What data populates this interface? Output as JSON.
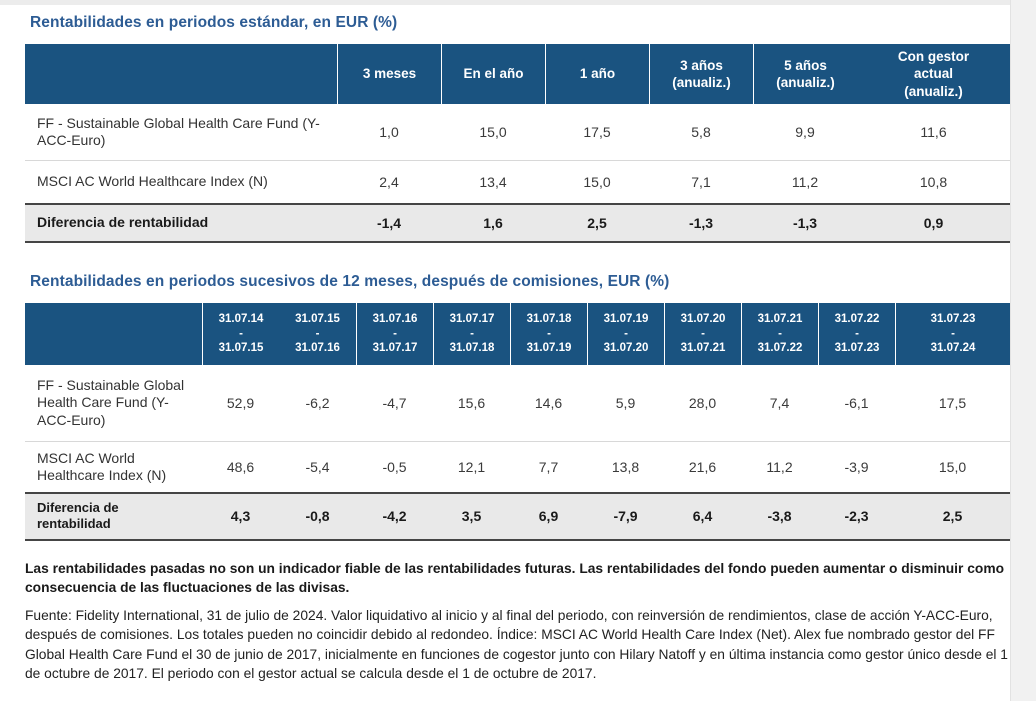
{
  "colors": {
    "header_bg": "#1a5380",
    "title_blue": "#2d5c94",
    "diff_row_bg": "#e9e9e9",
    "dark_border": "#454545",
    "row_divider": "#d8d8d8"
  },
  "table1": {
    "title": "Rentabilidades en periodos estándar, en EUR (%)",
    "columns": [
      "3 meses",
      "En el año",
      "1 año",
      "3 años\n(anualiz.)",
      "5 años\n(anualiz.)",
      "Con gestor\nactual\n(anualiz.)"
    ],
    "rows": [
      {
        "label": "FF - Sustainable Global Health Care Fund (Y-ACC-Euro)",
        "values": [
          "1,0",
          "15,0",
          "17,5",
          "5,8",
          "9,9",
          "11,6"
        ]
      },
      {
        "label": "MSCI AC World Healthcare Index (N)",
        "values": [
          "2,4",
          "13,4",
          "15,0",
          "7,1",
          "11,2",
          "10,8"
        ]
      },
      {
        "label": "Diferencia de rentabilidad",
        "values": [
          "-1,4",
          "1,6",
          "2,5",
          "-1,3",
          "-1,3",
          "0,9"
        ]
      }
    ]
  },
  "table2": {
    "title": "Rentabilidades en periodos sucesivos de 12 meses, después de comisiones, EUR (%)",
    "columns": [
      "31.07.14\n-\n31.07.15",
      "31.07.15\n-\n31.07.16",
      "31.07.16\n-\n31.07.17",
      "31.07.17\n-\n31.07.18",
      "31.07.18\n-\n31.07.19",
      "31.07.19\n-\n31.07.20",
      "31.07.20\n-\n31.07.21",
      "31.07.21\n-\n31.07.22",
      "31.07.22\n-\n31.07.23",
      "31.07.23\n-\n31.07.24"
    ],
    "rows": [
      {
        "label": "FF - Sustainable Global Health Care Fund (Y-ACC-Euro)",
        "values": [
          "52,9",
          "-6,2",
          "-4,7",
          "15,6",
          "14,6",
          "5,9",
          "28,0",
          "7,4",
          "-6,1",
          "17,5"
        ]
      },
      {
        "label": "MSCI AC World Healthcare Index (N)",
        "values": [
          "48,6",
          "-5,4",
          "-0,5",
          "12,1",
          "7,7",
          "13,8",
          "21,6",
          "11,2",
          "-3,9",
          "15,0"
        ]
      },
      {
        "label": "Diferencia de rentabilidad",
        "values": [
          "4,3",
          "-0,8",
          "-4,2",
          "3,5",
          "6,9",
          "-7,9",
          "6,4",
          "-3,8",
          "-2,3",
          "2,5"
        ]
      }
    ]
  },
  "footnotes": {
    "bold_warning": "Las rentabilidades pasadas no son un indicador fiable de las rentabilidades futuras. Las rentabilidades del fondo pueden aumentar o disminuir como consecuencia de las fluctuaciones de las divisas.",
    "source": "Fuente: Fidelity International, 31 de julio de 2024. Valor liquidativo al inicio y al final del periodo, con reinversión de rendimientos, clase de acción Y-ACC-Euro, después de comisiones. Los totales pueden no coincidir debido al redondeo. Índice: MSCI AC World Health Care Index (Net). Alex fue nombrado gestor del FF Global Health Care Fund el 30 de junio de 2017, inicialmente en funciones de cogestor junto con Hilary Natoff y en última instancia como gestor único desde el 1 de octubre de 2017. El periodo con el gestor actual se calcula desde el 1 de octubre de 2017."
  }
}
